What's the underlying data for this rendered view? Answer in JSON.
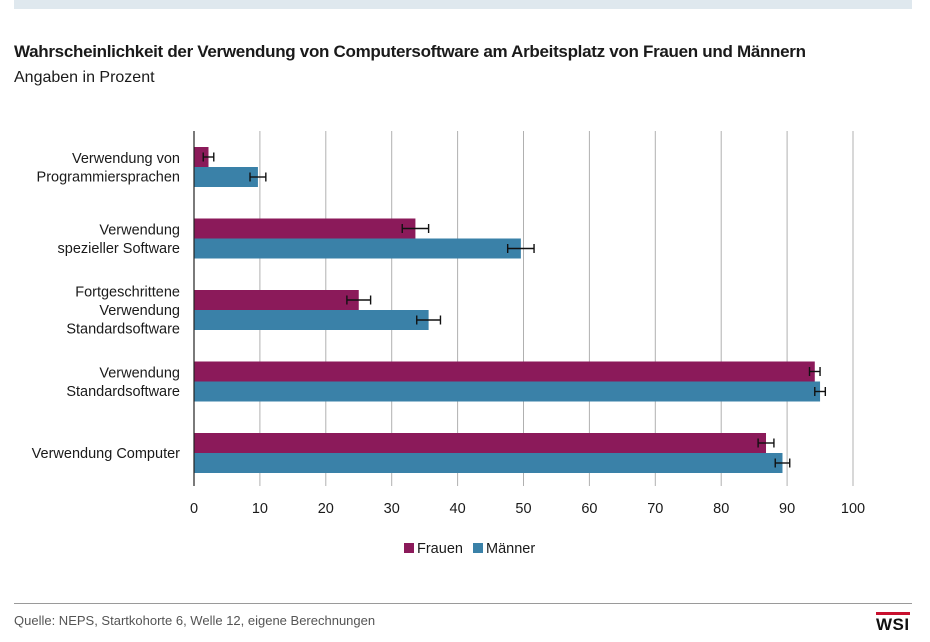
{
  "header": {
    "title": "Wahrscheinlichkeit der Verwendung von Computersoftware am Arbeitsplatz von Frauen und Männern",
    "subtitle": "Angaben in Prozent"
  },
  "footer": {
    "source": "Quelle: NEPS, Startkohorte 6, Welle 12, eigene Berechnungen",
    "logo_text": "WSI"
  },
  "colors": {
    "frauen": "#8b1a5a",
    "maenner": "#3a81a8",
    "grid": "#b0b0b0",
    "logo_accent": "#c8102e"
  },
  "chart_data": {
    "type": "bar",
    "orientation": "horizontal",
    "categories": [
      [
        "Verwendung von",
        "Programmiersprachen"
      ],
      [
        "Verwendung",
        "spezieller Software"
      ],
      [
        "Fortgeschrittene",
        "Verwendung",
        "Standardsoftware"
      ],
      [
        "Verwendung",
        "Standardsoftware"
      ],
      [
        "Verwendung Computer"
      ]
    ],
    "series": [
      {
        "name": "Frauen",
        "values": [
          2.2,
          33.6,
          25.0,
          94.2,
          86.8
        ],
        "error": [
          0.8,
          2.0,
          1.8,
          0.8,
          1.2
        ]
      },
      {
        "name": "Männer",
        "values": [
          9.7,
          49.6,
          35.6,
          95.0,
          89.3
        ],
        "error": [
          1.2,
          2.0,
          1.8,
          0.8,
          1.1
        ]
      }
    ],
    "xlim": [
      0,
      100
    ],
    "xticks": [
      0,
      10,
      20,
      30,
      40,
      50,
      60,
      70,
      80,
      90,
      100
    ],
    "grid": true,
    "legend_position": "bottom-center",
    "error_bars": true
  }
}
